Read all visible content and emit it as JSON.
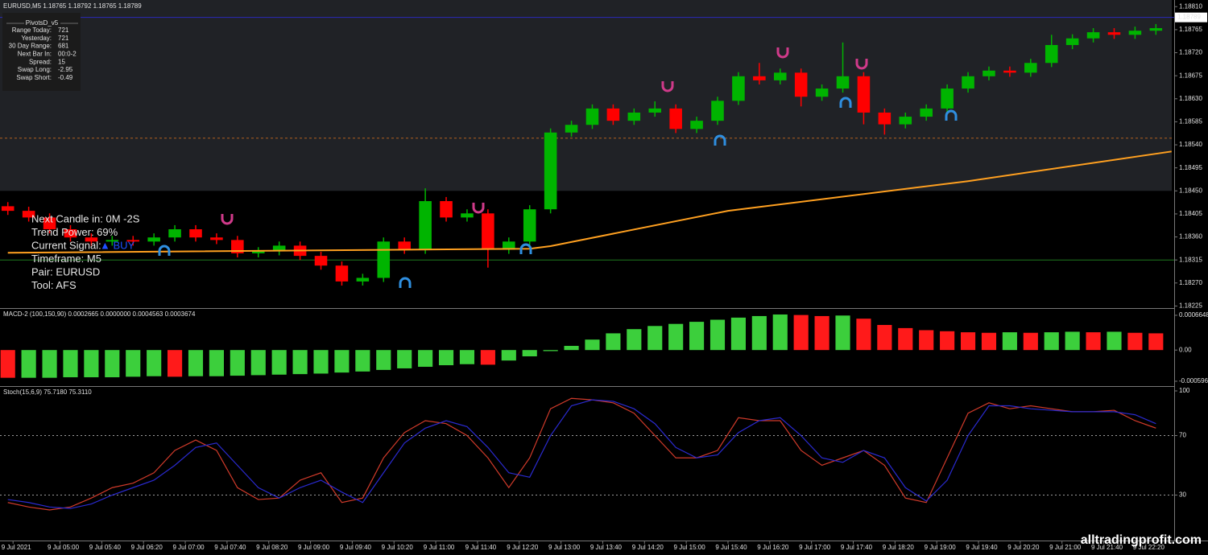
{
  "chart_data": [
    {
      "type": "candlestick",
      "title": "EURUSD,M5  1.18765 1.18792 1.18765 1.18789",
      "up_color": "#00b400",
      "down_color": "#ff0000",
      "xlim": [
        -1.5,
        223.5
      ],
      "ylim": [
        1.18221,
        1.18823
      ],
      "yticks": [
        {
          "value": 1.1881,
          "label": "1.18810"
        },
        1.18765,
        {
          "value": 1.1872,
          "label": "1.18720"
        },
        1.18675,
        {
          "value": 1.1863,
          "label": "1.18630"
        },
        1.18585,
        {
          "value": 1.1854,
          "label": "1.18540"
        },
        1.18495,
        {
          "value": 1.1845,
          "label": "1.18450"
        },
        1.18405,
        {
          "value": 1.1836,
          "label": "1.18360"
        },
        1.18315,
        {
          "value": 1.1827,
          "label": "1.18270"
        },
        1.18225
      ],
      "x": [
        0,
        4,
        8,
        12,
        16,
        20,
        24,
        28,
        32,
        36,
        40,
        44,
        48,
        52,
        56,
        60,
        64,
        68,
        72,
        76,
        80,
        84,
        88,
        92,
        96,
        100,
        104,
        108,
        112,
        116,
        120,
        124,
        128,
        132,
        136,
        140,
        144,
        148,
        152,
        156,
        160,
        164,
        168,
        172,
        176,
        180,
        184,
        188,
        192,
        196,
        200,
        204,
        208,
        212,
        216,
        220
      ],
      "open": [
        1.1842,
        1.18411,
        1.18398,
        1.18375,
        1.18359,
        1.18351,
        1.18354,
        1.18351,
        1.18359,
        1.18375,
        1.18359,
        1.18354,
        1.18328,
        1.18332,
        1.18343,
        1.18323,
        1.18304,
        1.18273,
        1.1828,
        1.18351,
        1.18335,
        1.1843,
        1.18398,
        1.18406,
        1.18335,
        1.18351,
        1.18414,
        1.18564,
        1.18579,
        1.18611,
        1.18587,
        1.18603,
        1.18611,
        1.18571,
        1.18587,
        1.18626,
        1.18674,
        1.18666,
        1.18681,
        1.18634,
        1.1865,
        1.18674,
        1.18603,
        1.1858,
        1.18595,
        1.18611,
        1.1865,
        1.18674,
        1.18685,
        1.18681,
        1.187,
        1.18735,
        1.18748,
        1.1876,
        1.18755,
        1.18763
      ],
      "high": [
        1.18428,
        1.18419,
        1.18406,
        1.18383,
        1.18367,
        1.18362,
        1.18362,
        1.18367,
        1.18383,
        1.18383,
        1.18367,
        1.18362,
        1.1834,
        1.18351,
        1.18351,
        1.18331,
        1.18312,
        1.18288,
        1.18359,
        1.18359,
        1.18455,
        1.18438,
        1.18414,
        1.18414,
        1.18359,
        1.18422,
        1.18572,
        1.18587,
        1.18619,
        1.18619,
        1.18611,
        1.18625,
        1.18619,
        1.18595,
        1.18634,
        1.18682,
        1.187,
        1.18689,
        1.18689,
        1.18658,
        1.1874,
        1.18682,
        1.18611,
        1.18603,
        1.18619,
        1.18658,
        1.18682,
        1.18693,
        1.18693,
        1.18708,
        1.18755,
        1.18756,
        1.18768,
        1.18768,
        1.18771,
        1.18776
      ],
      "low": [
        1.18403,
        1.1839,
        1.18367,
        1.18351,
        1.18343,
        1.18343,
        1.18343,
        1.18343,
        1.18351,
        1.18351,
        1.18346,
        1.1832,
        1.1832,
        1.18324,
        1.18315,
        1.18296,
        1.18265,
        1.18265,
        1.18272,
        1.18327,
        1.18327,
        1.1839,
        1.1839,
        1.183,
        1.18327,
        1.18343,
        1.18406,
        1.18556,
        1.18571,
        1.18579,
        1.18579,
        1.18595,
        1.18563,
        1.18563,
        1.18579,
        1.18618,
        1.18658,
        1.18658,
        1.18615,
        1.18626,
        1.18642,
        1.1858,
        1.1856,
        1.18572,
        1.18587,
        1.18603,
        1.18642,
        1.18666,
        1.18673,
        1.18673,
        1.18692,
        1.18727,
        1.1874,
        1.18747,
        1.18747,
        1.18755
      ],
      "close": [
        1.18411,
        1.18398,
        1.18375,
        1.18359,
        1.18351,
        1.18354,
        1.18351,
        1.18359,
        1.18375,
        1.18359,
        1.18354,
        1.18328,
        1.18332,
        1.18343,
        1.18323,
        1.18304,
        1.18273,
        1.1828,
        1.18351,
        1.18335,
        1.1843,
        1.18398,
        1.18406,
        1.18335,
        1.18351,
        1.18414,
        1.18564,
        1.18579,
        1.18611,
        1.18587,
        1.18603,
        1.18611,
        1.18571,
        1.18587,
        1.18626,
        1.18674,
        1.18666,
        1.18681,
        1.18634,
        1.1865,
        1.18674,
        1.18603,
        1.1858,
        1.18595,
        1.18611,
        1.1865,
        1.18674,
        1.18685,
        1.18681,
        1.187,
        1.18735,
        1.18748,
        1.1876,
        1.18755,
        1.18763,
        1.18768
      ],
      "ma": {
        "color": "#ffa020",
        "x": [
          0,
          100,
          104,
          138,
          184,
          223
        ],
        "values": [
          1.18329,
          1.18337,
          1.18342,
          1.18411,
          1.18469,
          1.18527
        ]
      },
      "zone": {
        "from": 1.1845,
        "to": 1.18823,
        "color": "#202226"
      },
      "levels": [
        {
          "value": 1.18789,
          "color": "#2a2ab8",
          "dashed": false
        },
        {
          "value": 1.18315,
          "color": "#1e7a1e",
          "dashed": false
        },
        {
          "value": 1.18553,
          "color": "#b06020",
          "dashed": true
        }
      ],
      "price_tag": 1.18789,
      "info_panel": {
        "title": "PivotsD_v5",
        "rows": [
          [
            "Range Today:",
            "721"
          ],
          [
            "Yesterday:",
            "721"
          ],
          [
            "30 Day Range:",
            "681"
          ],
          [
            "Next Bar In:",
            "00:0-2"
          ],
          [
            "Spread:",
            "15"
          ],
          [
            "Swap  Long:",
            "-2.95"
          ],
          [
            "Swap  Short:",
            "-0.49"
          ]
        ]
      },
      "annotations": [
        "Next Candle in: 0M -2S",
        "Trend Power: 69%",
        "Current Signal:",
        "Timeframe: M5",
        "Pair: EURUSD",
        "Tool: AFS"
      ],
      "signal": "▲ BUY",
      "signal_color": "#1e50ff"
    },
    {
      "type": "bar",
      "title": "MACD-2 (100,150,90) 0.0002665 0.0000000 0.0004563 0.0003674",
      "up_color": "#3ccf3c",
      "down_color": "#ff1a1a",
      "xlim": [
        -1.5,
        223.5
      ],
      "ylim": [
        -0.000658,
        0.000772
      ],
      "yticks": [
        0.0006648,
        {
          "value": 0,
          "label": "0.00"
        },
        -0.000596
      ],
      "x": [
        0,
        4,
        8,
        12,
        16,
        20,
        24,
        28,
        32,
        36,
        40,
        44,
        48,
        52,
        56,
        60,
        64,
        68,
        72,
        76,
        80,
        84,
        88,
        92,
        96,
        100,
        104,
        108,
        112,
        116,
        120,
        124,
        128,
        132,
        136,
        140,
        144,
        148,
        152,
        156,
        160,
        164,
        168,
        172,
        176,
        180,
        184,
        188,
        192,
        196,
        200,
        204,
        208,
        212,
        216,
        220
      ],
      "values": [
        -0.00053,
        -0.00053,
        -0.00053,
        -0.00052,
        -0.00052,
        -0.00052,
        -0.00051,
        -0.0005,
        -0.00051,
        -0.0005,
        -0.0005,
        -0.00049,
        -0.00048,
        -0.00047,
        -0.00046,
        -0.00045,
        -0.00043,
        -0.00041,
        -0.00038,
        -0.00035,
        -0.00032,
        -0.00029,
        -0.00027,
        -0.00028,
        -0.0002,
        -0.00012,
        -2e-05,
        8e-05,
        0.0002,
        0.00032,
        0.0004,
        0.00046,
        0.0005,
        0.00054,
        0.00058,
        0.00062,
        0.00065,
        0.00068,
        0.00067,
        0.00065,
        0.00066,
        0.0006,
        0.00048,
        0.00042,
        0.00038,
        0.00036,
        0.00034,
        0.00033,
        0.00034,
        0.00033,
        0.00034,
        0.00035,
        0.00034,
        0.00035,
        0.00033,
        0.00032
      ]
    },
    {
      "type": "line",
      "title": "Stoch(15,6,9) 75.7180 75.3110",
      "xlim": [
        -1.5,
        223.5
      ],
      "ylim": [
        0,
        100
      ],
      "yticks": [
        100,
        70,
        30
      ],
      "levels": [
        70,
        30
      ],
      "level_color": "#9a9a9a",
      "xticks": [
        {
          "value": 1,
          "label": "9 Jul 2021"
        },
        {
          "value": 10,
          "label": "9 Jul 05:00"
        },
        {
          "value": 18,
          "label": "9 Jul 05:40"
        },
        {
          "value": 26,
          "label": "9 Jul 06:20"
        },
        {
          "value": 34,
          "label": "9 Jul 07:00"
        },
        {
          "value": 42,
          "label": "9 Jul 07:40"
        },
        {
          "value": 50,
          "label": "9 Jul 08:20"
        },
        {
          "value": 58,
          "label": "9 Jul 09:00"
        },
        {
          "value": 66,
          "label": "9 Jul 09:40"
        },
        {
          "value": 74,
          "label": "9 Jul 10:20"
        },
        {
          "value": 82,
          "label": "9 Jul 11:00"
        },
        {
          "value": 90,
          "label": "9 Jul 11:40"
        },
        {
          "value": 98,
          "label": "9 Jul 12:20"
        },
        {
          "value": 106,
          "label": "9 Jul 13:00"
        },
        {
          "value": 114,
          "label": "9 Jul 13:40"
        },
        {
          "value": 122,
          "label": "9 Jul 14:20"
        },
        {
          "value": 130,
          "label": "9 Jul 15:00"
        },
        {
          "value": 138,
          "label": "9 Jul 15:40"
        },
        {
          "value": 146,
          "label": "9 Jul 16:20"
        },
        {
          "value": 154,
          "label": "9 Jul 17:00"
        },
        {
          "value": 162,
          "label": "9 Jul 17:40"
        },
        {
          "value": 170,
          "label": "9 Jul 18:20"
        },
        {
          "value": 178,
          "label": "9 Jul 19:00"
        },
        {
          "value": 186,
          "label": "9 Jul 19:40"
        },
        {
          "value": 194,
          "label": "9 Jul 20:20"
        },
        {
          "value": 202,
          "label": "9 Jul 21:00"
        },
        {
          "value": 210,
          "label": "9 Jul 21:40"
        },
        {
          "value": 218,
          "label": "9 Jul 22:20"
        }
      ],
      "x": [
        0,
        4,
        8,
        12,
        16,
        20,
        24,
        28,
        32,
        36,
        40,
        44,
        48,
        52,
        56,
        60,
        64,
        68,
        72,
        76,
        80,
        84,
        88,
        92,
        96,
        100,
        104,
        108,
        112,
        116,
        120,
        124,
        128,
        132,
        136,
        140,
        144,
        148,
        152,
        156,
        160,
        164,
        168,
        172,
        176,
        180,
        184,
        188,
        192,
        196,
        200,
        204,
        208,
        212,
        216,
        220
      ],
      "series": [
        {
          "color": "#d03a2a",
          "values": [
            25,
            22,
            20,
            22,
            28,
            35,
            38,
            45,
            60,
            67,
            60,
            35,
            27,
            28,
            40,
            45,
            25,
            28,
            55,
            72,
            80,
            78,
            70,
            55,
            35,
            55,
            88,
            95,
            94,
            92,
            85,
            70,
            55,
            55,
            60,
            82,
            80,
            80,
            60,
            50,
            55,
            60,
            50,
            28,
            25,
            55,
            85,
            92,
            88,
            90,
            88,
            86,
            86,
            87,
            80,
            75
          ]
        },
        {
          "color": "#2a2ad0",
          "values": [
            27,
            25,
            22,
            21,
            24,
            30,
            35,
            40,
            50,
            62,
            65,
            50,
            35,
            28,
            35,
            40,
            32,
            25,
            45,
            65,
            75,
            80,
            76,
            62,
            45,
            42,
            70,
            90,
            94,
            93,
            88,
            78,
            62,
            55,
            57,
            72,
            80,
            82,
            70,
            55,
            52,
            60,
            55,
            35,
            26,
            40,
            70,
            90,
            90,
            88,
            87,
            86,
            86,
            86,
            84,
            78
          ]
        }
      ]
    }
  ],
  "watermark": "alltradingprofit.com"
}
